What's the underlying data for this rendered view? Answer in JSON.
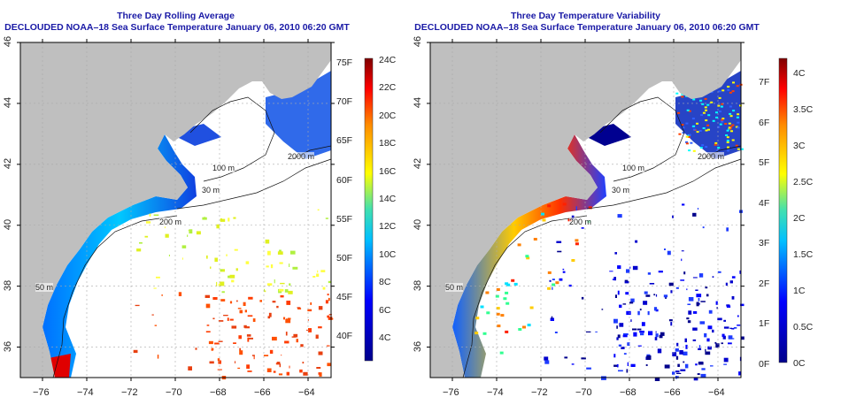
{
  "left_panel": {
    "title": "Three Day Rolling Average",
    "subtitle": "DECLOUDED NOAA–18 Sea Surface Temperature January 06, 2010 06:20 GMT",
    "colorbar": {
      "f_labels": [
        "75F",
        "70F",
        "65F",
        "60F",
        "55F",
        "50F",
        "45F",
        "40F"
      ],
      "c_labels": [
        "24C",
        "22C",
        "20C",
        "18C",
        "16C",
        "14C",
        "12C",
        "10C",
        "8C",
        "6C",
        "4C"
      ]
    }
  },
  "right_panel": {
    "title": "Three Day Temperature Variability",
    "subtitle": "DECLOUDED NOAA–18 Sea Surface Temperature January 06, 2010 06:20 GMT",
    "colorbar": {
      "f_labels": [
        "7F",
        "6F",
        "5F",
        "4F",
        "3F",
        "2F",
        "1F",
        "0F"
      ],
      "c_labels": [
        "4C",
        "3.5C",
        "3C",
        "2.5C",
        "2C",
        "1.5C",
        "1C",
        "0.5C",
        "0C"
      ]
    }
  },
  "axes": {
    "lon_labels": [
      "−76",
      "−74",
      "−72",
      "−70",
      "−68",
      "−66",
      "−64"
    ],
    "lat_labels": [
      "46",
      "44",
      "42",
      "40",
      "38",
      "36"
    ]
  },
  "contours": {
    "c200": "200 m",
    "c50": "50 m",
    "c100": "100 m",
    "c2000": "2000 m",
    "c30": "30 m"
  },
  "colors": {
    "title": "#1a1aa6",
    "land": "#bfbfbf"
  }
}
